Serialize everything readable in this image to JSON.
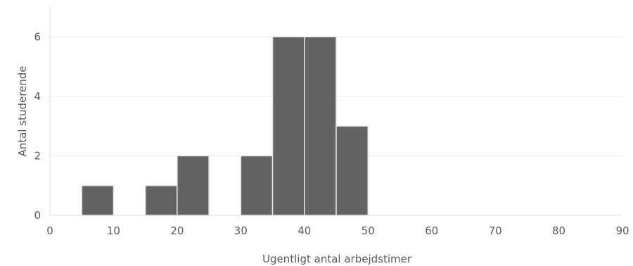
{
  "chart_data": {
    "type": "bar",
    "subtype": "histogram",
    "title": "",
    "xlabel": "Ugentligt antal arbejdstimer",
    "ylabel": "Antal studerende",
    "xlim": [
      0,
      90
    ],
    "ylim": [
      0,
      7
    ],
    "x_ticks": [
      0,
      10,
      20,
      30,
      40,
      50,
      60,
      70,
      80,
      90
    ],
    "y_ticks": [
      0,
      2,
      4,
      6
    ],
    "bin_width": 5,
    "bins": [
      {
        "start": 5,
        "end": 10,
        "count": 1
      },
      {
        "start": 15,
        "end": 20,
        "count": 1
      },
      {
        "start": 20,
        "end": 25,
        "count": 2
      },
      {
        "start": 30,
        "end": 35,
        "count": 2
      },
      {
        "start": 35,
        "end": 40,
        "count": 6
      },
      {
        "start": 40,
        "end": 45,
        "count": 6
      },
      {
        "start": 45,
        "end": 50,
        "count": 3
      }
    ],
    "grid": true,
    "legend": false,
    "colors": {
      "bar": "#636363",
      "bar_edge": "#e6e6e6",
      "grid": "#ececec",
      "text": "#595959"
    }
  }
}
